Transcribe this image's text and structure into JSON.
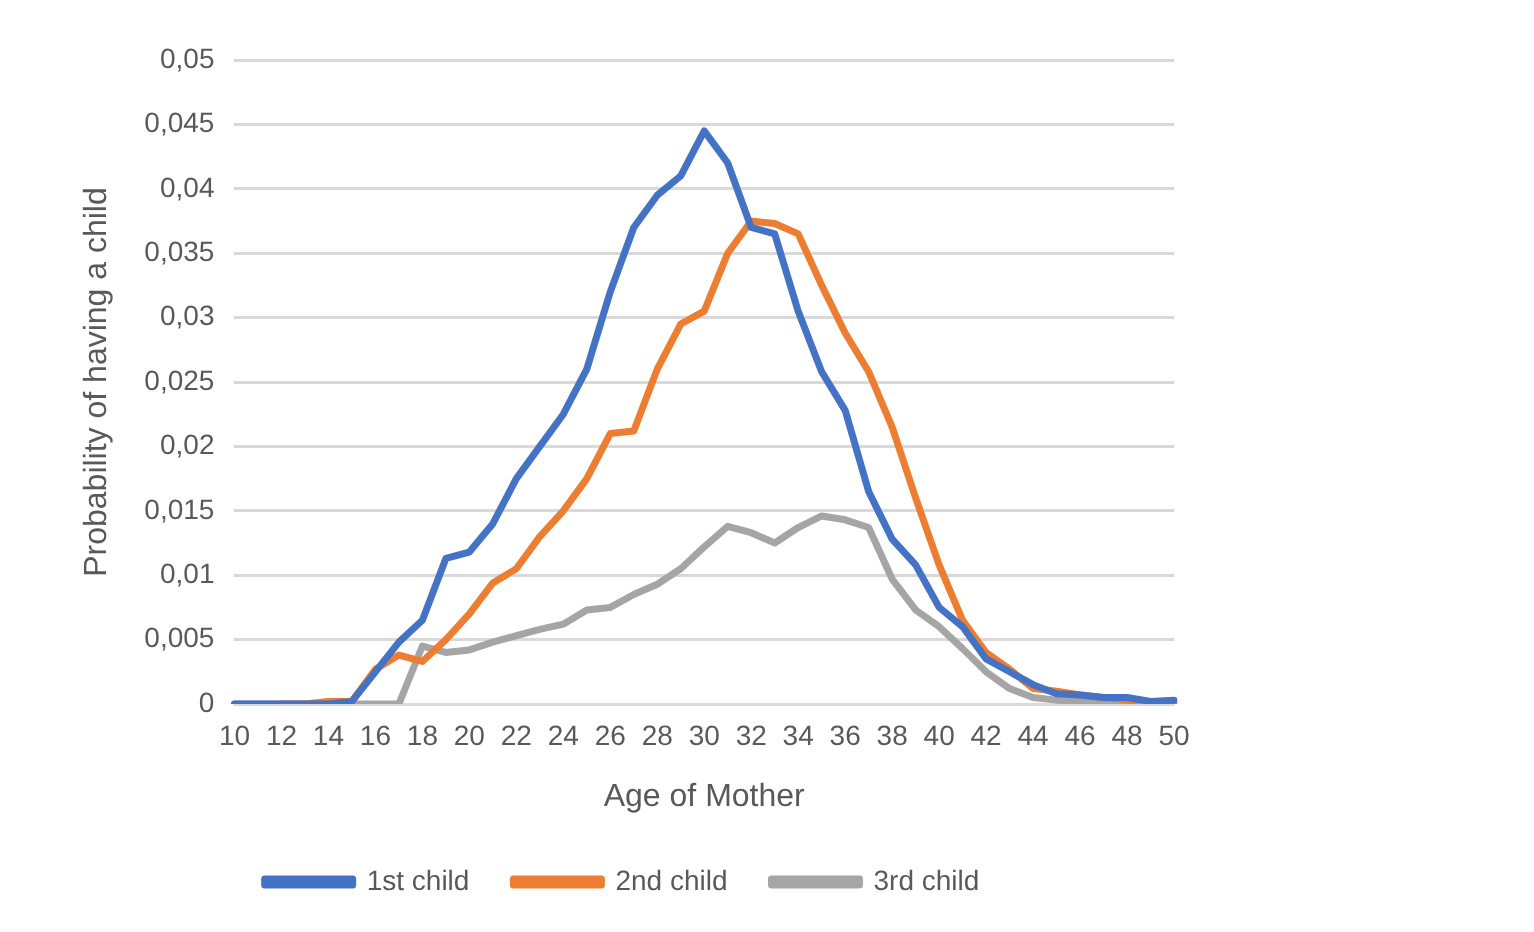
{
  "chart_data": {
    "type": "line",
    "xlabel": "Age of Mother",
    "ylabel": "Probability of having a child",
    "categories": [
      "10",
      null,
      "12",
      null,
      "14",
      null,
      "16",
      null,
      "18",
      null,
      "20",
      null,
      "22",
      null,
      "24",
      null,
      "26",
      null,
      "28",
      null,
      "30",
      null,
      "32",
      null,
      "34",
      null,
      "36",
      null,
      "38",
      null,
      "40",
      null,
      "42",
      null,
      "44",
      null,
      "46",
      null,
      "48",
      null,
      "50"
    ],
    "series": [
      {
        "name": "1st child",
        "color": "#4472c4",
        "values": [
          0,
          0,
          0,
          0,
          0,
          0.0002,
          0.0025,
          0.0048,
          0.0065,
          0.0113,
          0.0118,
          0.014,
          0.0175,
          0.02,
          0.0225,
          0.026,
          0.032,
          0.037,
          0.0395,
          0.041,
          0.0445,
          0.042,
          0.037,
          0.0365,
          0.0305,
          0.0258,
          0.0228,
          0.0165,
          0.0128,
          0.0108,
          0.0075,
          0.006,
          0.0035,
          0.0025,
          0.0015,
          0.0008,
          0.0007,
          0.0005,
          0.0005,
          0.0002,
          0.0003
        ]
      },
      {
        "name": "2nd child",
        "color": "#ed7d31",
        "values": [
          null,
          null,
          0,
          0,
          0.0002,
          0.0002,
          0.0027,
          0.0038,
          0.0033,
          0.005,
          0.007,
          0.0094,
          0.0105,
          0.013,
          0.015,
          0.0175,
          0.021,
          0.0212,
          0.026,
          0.0295,
          0.0305,
          0.035,
          0.0375,
          0.0373,
          0.0365,
          0.0325,
          0.0288,
          0.0258,
          0.0215,
          0.016,
          0.0108,
          0.0065,
          0.004,
          0.0027,
          0.0012,
          0.001,
          0.0007,
          0.0005,
          0.0003,
          0.0002,
          0.0001
        ]
      },
      {
        "name": "3rd child",
        "color": "#a5a5a5",
        "values": [
          0,
          0,
          0,
          0,
          0,
          0,
          0,
          0,
          0.0045,
          0.004,
          0.0042,
          0.0048,
          0.0053,
          0.0058,
          0.0062,
          0.0073,
          0.0075,
          0.0085,
          0.0093,
          0.0105,
          0.0122,
          0.0138,
          0.0133,
          0.0125,
          0.0137,
          0.0146,
          0.0143,
          0.0137,
          0.0097,
          0.0073,
          0.006,
          0.0043,
          0.0025,
          0.0012,
          0.0005,
          0.0003,
          0.0002,
          0.0001,
          0.0001,
          0.0001,
          0
        ]
      }
    ],
    "ylim": [
      0,
      0.05
    ],
    "yticks": [
      {
        "value": 0,
        "label": "0"
      },
      {
        "value": 0.005,
        "label": "0,005"
      },
      {
        "value": 0.01,
        "label": "0,01"
      },
      {
        "value": 0.015,
        "label": "0,015"
      },
      {
        "value": 0.02,
        "label": "0,02"
      },
      {
        "value": 0.025,
        "label": "0,025"
      },
      {
        "value": 0.03,
        "label": "0,03"
      },
      {
        "value": 0.035,
        "label": "0,035"
      },
      {
        "value": 0.04,
        "label": "0,04"
      },
      {
        "value": 0.045,
        "label": "0,045"
      },
      {
        "value": 0.05,
        "label": "0,05"
      }
    ],
    "grid": "y",
    "legend": "bottom",
    "marker": "none",
    "line_style": "solid"
  }
}
